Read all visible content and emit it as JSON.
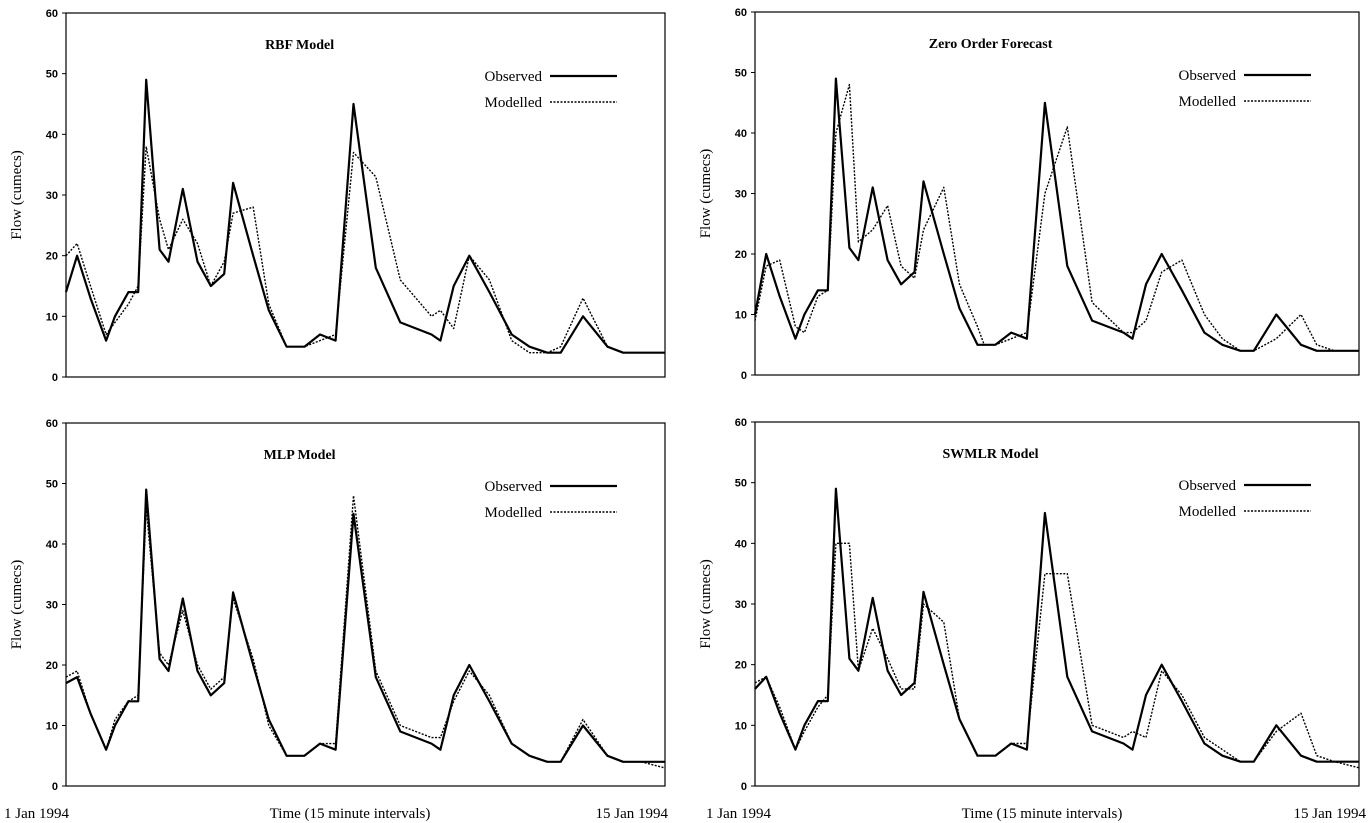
{
  "figure": {
    "shared_x_label": "Time (15 minute intervals)",
    "x_start_label": "1 Jan 1994",
    "x_end_label": "15 Jan 1994"
  },
  "chart_data": [
    {
      "type": "line",
      "title": "RBF Model",
      "ylabel": "Flow (cumecs)",
      "xlabel": "Time (15 minute intervals)",
      "x_start_label": "1 Jan 1994",
      "x_end_label": "15 Jan 1994",
      "xlim": [
        0,
        1344
      ],
      "ylim": [
        0,
        60
      ],
      "yticks": [
        0,
        10,
        20,
        30,
        40,
        50,
        60
      ],
      "legend_position": "top-right",
      "grid": false,
      "x": [
        0,
        25,
        55,
        90,
        110,
        140,
        162,
        180,
        210,
        230,
        262,
        295,
        325,
        355,
        375,
        420,
        455,
        495,
        510,
        535,
        570,
        605,
        645,
        695,
        750,
        820,
        840,
        870,
        905,
        950,
        1000,
        1040,
        1080,
        1110,
        1160,
        1215,
        1250,
        1290,
        1344
      ],
      "series": [
        {
          "name": "Observed",
          "values": [
            14,
            20,
            13,
            6,
            10,
            14,
            14,
            49,
            21,
            19,
            31,
            19,
            15,
            17,
            32,
            20,
            11,
            5,
            5,
            5,
            7,
            6,
            45,
            18,
            9,
            7,
            6,
            15,
            20,
            14,
            7,
            5,
            4,
            4,
            10,
            5,
            4,
            4,
            4
          ]
        },
        {
          "name": "Modelled",
          "values": [
            20,
            22,
            15,
            7,
            9,
            12,
            15,
            38,
            26,
            21,
            26,
            22,
            15,
            19,
            27,
            28,
            12,
            5,
            5,
            5,
            6,
            7,
            37,
            33,
            16,
            10,
            11,
            8,
            20,
            16,
            6,
            4,
            4,
            5,
            13,
            5,
            4,
            4,
            4
          ]
        }
      ]
    },
    {
      "type": "line",
      "title": "Zero Order Forecast",
      "ylabel": "Flow (cumecs)",
      "xlabel": "Time (15 minute intervals)",
      "xlim": [
        0,
        1344
      ],
      "ylim": [
        0,
        60
      ],
      "yticks": [
        0,
        10,
        20,
        30,
        40,
        50,
        60
      ],
      "legend_position": "top-right",
      "grid": false,
      "x": [
        0,
        25,
        55,
        90,
        110,
        140,
        162,
        180,
        210,
        230,
        262,
        295,
        325,
        355,
        375,
        420,
        455,
        495,
        510,
        535,
        570,
        605,
        645,
        695,
        750,
        820,
        840,
        870,
        905,
        950,
        1000,
        1040,
        1080,
        1110,
        1160,
        1215,
        1250,
        1290,
        1344
      ],
      "series": [
        {
          "name": "Observed",
          "values": [
            10,
            20,
            13,
            6,
            10,
            14,
            14,
            49,
            21,
            19,
            31,
            19,
            15,
            17,
            32,
            20,
            11,
            5,
            5,
            5,
            7,
            6,
            45,
            18,
            9,
            7,
            6,
            15,
            20,
            14,
            7,
            5,
            4,
            4,
            10,
            5,
            4,
            4,
            4
          ]
        },
        {
          "name": "Modelled",
          "values": [
            9,
            18,
            19,
            8,
            7,
            13,
            14,
            40,
            48,
            22,
            24,
            28,
            18,
            16,
            24,
            31,
            15,
            8,
            5,
            5,
            6,
            7,
            30,
            41,
            12,
            7,
            7,
            9,
            17,
            19,
            10,
            6,
            4,
            4,
            6,
            10,
            5,
            4,
            4
          ]
        }
      ]
    },
    {
      "type": "line",
      "title": "MLP Model",
      "ylabel": "Flow (cumecs)",
      "xlabel": "Time (15 minute intervals)",
      "x_start_label": "1 Jan 1994",
      "x_end_label": "15 Jan 1994",
      "xlim": [
        0,
        1344
      ],
      "ylim": [
        0,
        60
      ],
      "yticks": [
        0,
        10,
        20,
        30,
        40,
        50,
        60
      ],
      "legend_position": "top-right",
      "grid": false,
      "x": [
        0,
        25,
        55,
        90,
        110,
        140,
        162,
        180,
        210,
        230,
        262,
        295,
        325,
        355,
        375,
        420,
        455,
        495,
        510,
        535,
        570,
        605,
        645,
        695,
        750,
        820,
        840,
        870,
        905,
        950,
        1000,
        1040,
        1080,
        1110,
        1160,
        1215,
        1250,
        1290,
        1344
      ],
      "series": [
        {
          "name": "Observed",
          "values": [
            17,
            18,
            12,
            6,
            10,
            14,
            14,
            49,
            21,
            19,
            31,
            19,
            15,
            17,
            32,
            20,
            11,
            5,
            5,
            5,
            7,
            6,
            45,
            18,
            9,
            7,
            6,
            15,
            20,
            14,
            7,
            5,
            4,
            4,
            10,
            5,
            4,
            4,
            4
          ]
        },
        {
          "name": "Modelled",
          "values": [
            18,
            19,
            12,
            6,
            11,
            14,
            15,
            46,
            22,
            20,
            29,
            20,
            16,
            18,
            31,
            21,
            10,
            5,
            5,
            5,
            7,
            7,
            48,
            19,
            10,
            8,
            8,
            14,
            19,
            15,
            7,
            5,
            4,
            4,
            11,
            5,
            4,
            4,
            3
          ]
        }
      ]
    },
    {
      "type": "line",
      "title": "SWMLR Model",
      "ylabel": "Flow (cumecs)",
      "xlabel": "Time (15 minute intervals)",
      "x_start_label": "1 Jan 1994",
      "x_end_label": "15 Jan 1994",
      "xlim": [
        0,
        1344
      ],
      "ylim": [
        0,
        60
      ],
      "yticks": [
        0,
        10,
        20,
        30,
        40,
        50,
        60
      ],
      "legend_position": "top-right",
      "grid": false,
      "x": [
        0,
        25,
        55,
        90,
        110,
        140,
        162,
        180,
        210,
        230,
        262,
        295,
        325,
        355,
        375,
        420,
        455,
        495,
        510,
        535,
        570,
        605,
        645,
        695,
        750,
        820,
        840,
        870,
        905,
        950,
        1000,
        1040,
        1080,
        1110,
        1160,
        1215,
        1250,
        1290,
        1344
      ],
      "series": [
        {
          "name": "Observed",
          "values": [
            16,
            18,
            12,
            6,
            10,
            14,
            14,
            49,
            21,
            19,
            31,
            19,
            15,
            17,
            32,
            20,
            11,
            5,
            5,
            5,
            7,
            6,
            45,
            18,
            9,
            7,
            6,
            15,
            20,
            14,
            7,
            5,
            4,
            4,
            10,
            5,
            4,
            4,
            4
          ]
        },
        {
          "name": "Modelled",
          "values": [
            17,
            18,
            13,
            6,
            9,
            13,
            15,
            40,
            40,
            19,
            26,
            21,
            16,
            16,
            30,
            27,
            11,
            5,
            5,
            5,
            7,
            7,
            35,
            35,
            10,
            8,
            9,
            8,
            19,
            15,
            8,
            6,
            4,
            4,
            9,
            12,
            5,
            4,
            3
          ]
        }
      ]
    }
  ]
}
